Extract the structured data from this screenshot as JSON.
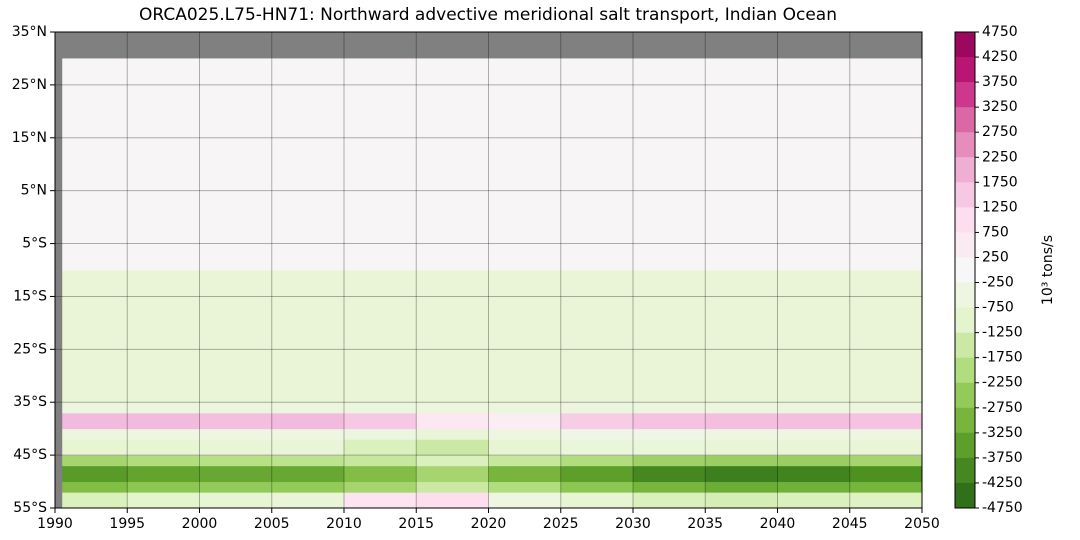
{
  "chart_data": {
    "type": "heatmap",
    "title": "ORCA025.L75-HN71: Northward advective meridional salt transport, Indian Ocean",
    "colorbar_label": "10³ tons/s",
    "x_edges": [
      1990.5,
      1995,
      2000,
      2005,
      2010,
      2015,
      2020,
      2025,
      2030,
      2035,
      2040,
      2045,
      2050
    ],
    "y_edges": [
      -55,
      -52,
      -50,
      -47,
      -45,
      -42,
      -40,
      -37,
      -35,
      -10,
      30
    ],
    "values": [
      [
        -1200,
        -1000,
        -900,
        -800,
        800,
        1000,
        -500,
        -900,
        -1200,
        -1300,
        -1200,
        -1100
      ],
      [
        -2800,
        -2600,
        -2500,
        -2500,
        -2200,
        -1500,
        -2000,
        -2600,
        -3000,
        -3200,
        -3100,
        -3000
      ],
      [
        -3600,
        -3400,
        -3300,
        -3300,
        -2800,
        -2200,
        -3000,
        -3500,
        -4000,
        -4200,
        -4100,
        -3800
      ],
      [
        -2200,
        -2000,
        -1900,
        -1800,
        -1600,
        -1200,
        -1600,
        -2000,
        -2300,
        -2400,
        -2400,
        -2200
      ],
      [
        -900,
        -900,
        -800,
        -800,
        -1200,
        -1500,
        -900,
        -700,
        -700,
        -800,
        -800,
        -800
      ],
      [
        -600,
        -500,
        -500,
        -500,
        -600,
        -800,
        -500,
        -400,
        -400,
        -500,
        -500,
        -500
      ],
      [
        1800,
        1800,
        1700,
        1800,
        1500,
        600,
        400,
        1400,
        1600,
        1700,
        1700,
        1600
      ],
      [
        -600,
        -600,
        -600,
        -600,
        -600,
        -600,
        -600,
        -600,
        -600,
        -600,
        -600,
        -600
      ],
      [
        -800,
        -800,
        -800,
        -800,
        -800,
        -800,
        -800,
        -800,
        -800,
        -800,
        -800,
        -800
      ],
      [
        100,
        100,
        100,
        100,
        100,
        100,
        100,
        100,
        100,
        100,
        100,
        100
      ]
    ],
    "xlim": [
      1990,
      2050
    ],
    "ylim": [
      -55,
      35
    ],
    "xticks": [
      1990,
      1995,
      2000,
      2005,
      2010,
      2015,
      2020,
      2025,
      2030,
      2035,
      2040,
      2045,
      2050
    ],
    "yticks": [
      {
        "value": 35,
        "label": "35°N"
      },
      {
        "value": 25,
        "label": "25°N"
      },
      {
        "value": 15,
        "label": "15°N"
      },
      {
        "value": 5,
        "label": "5°N"
      },
      {
        "value": -5,
        "label": "5°S"
      },
      {
        "value": -15,
        "label": "15°S"
      },
      {
        "value": -25,
        "label": "25°S"
      },
      {
        "value": -35,
        "label": "35°S"
      },
      {
        "value": -45,
        "label": "45°S"
      },
      {
        "value": -55,
        "label": "55°S"
      }
    ],
    "clim": [
      -4750,
      4750
    ],
    "cticks": [
      4750,
      4250,
      3750,
      3250,
      2750,
      2250,
      1750,
      1250,
      750,
      250,
      -250,
      -750,
      -1250,
      -1750,
      -2250,
      -2750,
      -3250,
      -3750,
      -4250,
      -4750
    ],
    "colormap": [
      "#276419",
      "#4d9221",
      "#7fbc41",
      "#b8e186",
      "#e6f5d0",
      "#f7f7f7",
      "#fde0ef",
      "#f1b6da",
      "#de77ae",
      "#c51b7d",
      "#8e0152"
    ],
    "facecolor": "#808080",
    "grid": true
  }
}
